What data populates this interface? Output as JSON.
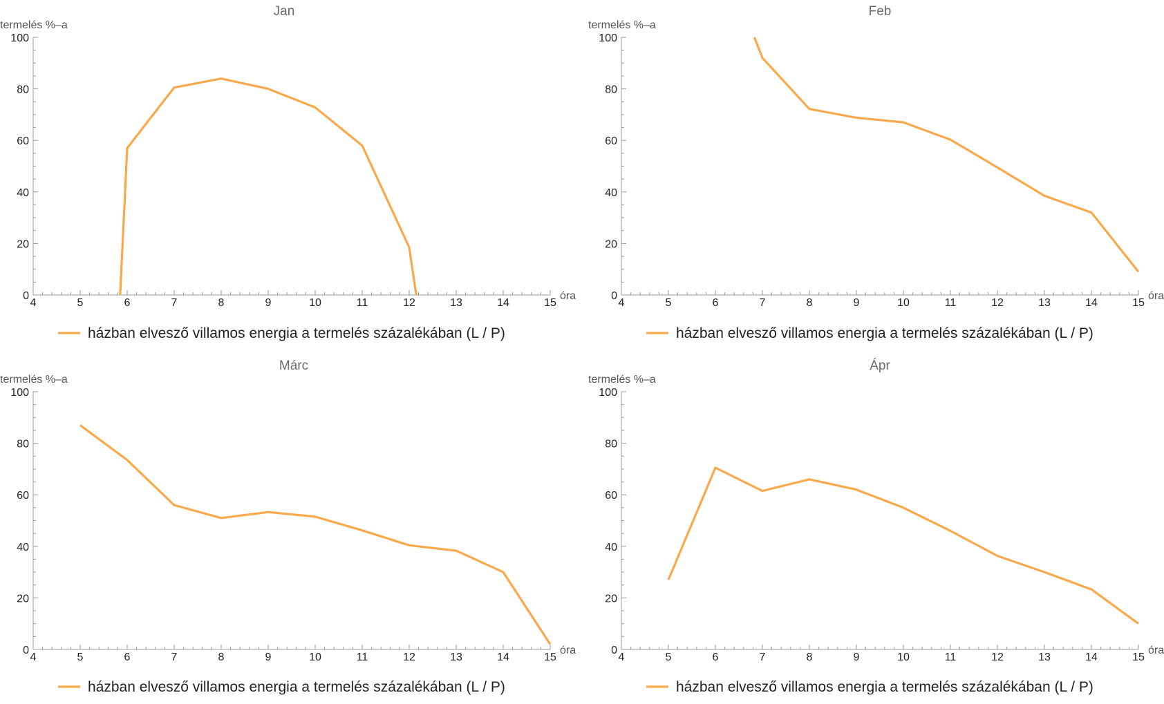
{
  "legend_label": "házban elvesző villamos energia a termelés százalékában (L / P)",
  "series_color": "#F9A94B",
  "axis_color": "#999999",
  "chart_data": [
    {
      "type": "line",
      "title": "Jan",
      "xlabel": "óra",
      "ylabel": "termelés %–a",
      "xlim": [
        4,
        15
      ],
      "ylim": [
        0,
        100
      ],
      "xticks": [
        4,
        5,
        6,
        7,
        8,
        9,
        10,
        11,
        12,
        13,
        14,
        15
      ],
      "yticks": [
        0,
        20,
        40,
        60,
        80,
        100
      ],
      "grid": false,
      "legend_position": "bottom",
      "series": [
        {
          "name": "házban elvesző villamos energia a termelés százalékában (L / P)",
          "x": [
            5.85,
            6,
            7,
            8,
            9,
            10,
            11,
            12,
            12.15
          ],
          "y": [
            0,
            57,
            80.5,
            84,
            80,
            72.8,
            58,
            18.5,
            0
          ]
        }
      ]
    },
    {
      "type": "line",
      "title": "Feb",
      "xlabel": "óra",
      "ylabel": "termelés %–a",
      "xlim": [
        4,
        15
      ],
      "ylim": [
        0,
        100
      ],
      "xticks": [
        4,
        5,
        6,
        7,
        8,
        9,
        10,
        11,
        12,
        13,
        14,
        15
      ],
      "yticks": [
        0,
        20,
        40,
        60,
        80,
        100
      ],
      "grid": false,
      "legend_position": "bottom",
      "series": [
        {
          "name": "házban elvesző villamos energia a termelés százalékában (L / P)",
          "x": [
            6.83,
            7,
            8,
            9,
            10,
            11,
            12,
            13,
            14,
            15
          ],
          "y": [
            100,
            92,
            72.2,
            68.8,
            67,
            60.3,
            49.5,
            38.5,
            32,
            9
          ]
        }
      ]
    },
    {
      "type": "line",
      "title": "Márc",
      "xlabel": "óra",
      "ylabel": "termelés %–a",
      "xlim": [
        4,
        15
      ],
      "ylim": [
        0,
        100
      ],
      "xticks": [
        4,
        5,
        6,
        7,
        8,
        9,
        10,
        11,
        12,
        13,
        14,
        15
      ],
      "yticks": [
        0,
        20,
        40,
        60,
        80,
        100
      ],
      "grid": false,
      "legend_position": "bottom",
      "series": [
        {
          "name": "házban elvesző villamos energia a termelés százalékában (L / P)",
          "x": [
            5,
            6,
            7,
            8,
            9,
            10,
            11,
            12,
            13,
            14,
            15
          ],
          "y": [
            87,
            73.5,
            56,
            51,
            53.3,
            51.5,
            46.2,
            40.4,
            38.3,
            30,
            2
          ]
        }
      ]
    },
    {
      "type": "line",
      "title": "Ápr",
      "xlabel": "óra",
      "ylabel": "termelés %–a",
      "xlim": [
        4,
        15
      ],
      "ylim": [
        0,
        100
      ],
      "xticks": [
        4,
        5,
        6,
        7,
        8,
        9,
        10,
        11,
        12,
        13,
        14,
        15
      ],
      "yticks": [
        0,
        20,
        40,
        60,
        80,
        100
      ],
      "grid": false,
      "legend_position": "bottom",
      "series": [
        {
          "name": "házban elvesző villamos energia a termelés százalékában (L / P)",
          "x": [
            5,
            6,
            7,
            8,
            9,
            10,
            11,
            12,
            13,
            14,
            15
          ],
          "y": [
            27,
            70.5,
            61.5,
            66,
            62,
            55,
            46,
            36.3,
            30,
            23.3,
            10
          ]
        }
      ]
    }
  ]
}
